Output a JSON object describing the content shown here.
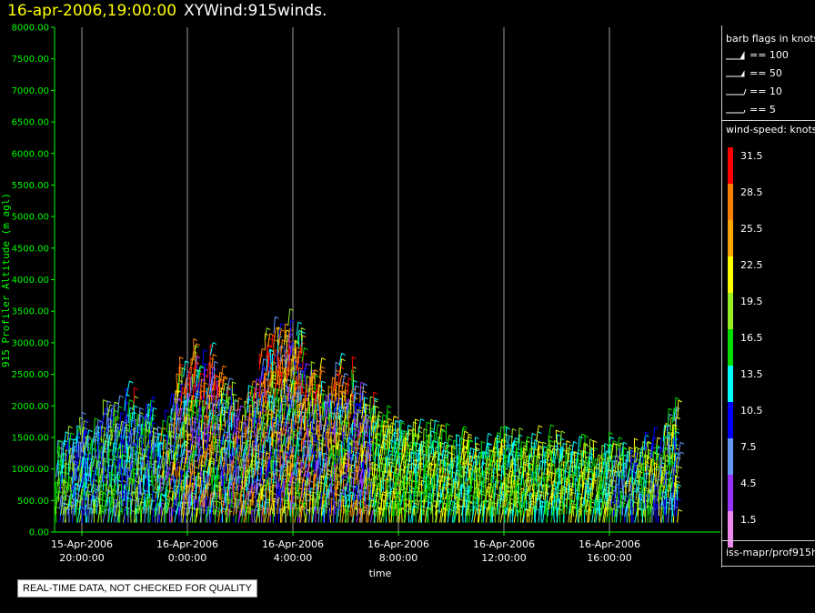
{
  "header": {
    "date": "16-apr-2006,19:00:00",
    "product": "XYWind:915winds."
  },
  "legend": {
    "barb_title": "barb flags in knots",
    "barbs": [
      "== 100",
      "== 50",
      "== 10",
      "== 5"
    ],
    "speed_title": "wind-speed: knots",
    "speed_bins": [
      {
        "label": "31.5",
        "color": "#ff0000"
      },
      {
        "label": "28.5",
        "color": "#ff7f00"
      },
      {
        "label": "25.5",
        "color": "#ffa500"
      },
      {
        "label": "22.5",
        "color": "#ffff00"
      },
      {
        "label": "19.5",
        "color": "#99ee22"
      },
      {
        "label": "16.5",
        "color": "#00dd00"
      },
      {
        "label": "13.5",
        "color": "#00ffff"
      },
      {
        "label": "10.5",
        "color": "#0000ff"
      },
      {
        "label": "7.5",
        "color": "#6699ff"
      },
      {
        "label": "4.5",
        "color": "#9933ff"
      },
      {
        "label": "1.5",
        "color": "#ee88ee"
      }
    ],
    "source": "iss-mapr/prof915h"
  },
  "notice": "REAL-TIME DATA, NOT CHECKED FOR QUALITY",
  "chart_data": {
    "type": "scatter",
    "xlabel": "time",
    "ylabel": "915 Profiler Altitude (m agl)",
    "ylim": [
      0,
      8000
    ],
    "yticks": [
      "0.00",
      "500.00",
      "1000.00",
      "1500.00",
      "2000.00",
      "2500.00",
      "3000.00",
      "3500.00",
      "4000.00",
      "4500.00",
      "5000.00",
      "5500.00",
      "6000.00",
      "6500.00",
      "7000.00",
      "7500.00",
      "8000.00"
    ],
    "xticks": [
      {
        "date": "15-Apr-2006",
        "time": "20:00:00"
      },
      {
        "date": "16-Apr-2006",
        "time": "0:00:00"
      },
      {
        "date": "16-Apr-2006",
        "time": "4:00:00"
      },
      {
        "date": "16-Apr-2006",
        "time": "8:00:00"
      },
      {
        "date": "16-Apr-2006",
        "time": "12:00:00"
      },
      {
        "date": "16-Apr-2006",
        "time": "16:00:00"
      }
    ],
    "grid": "vertical",
    "axis_color": "#00ff00",
    "series_envelope": {
      "hours_from_first_tick": [
        -1,
        0,
        1,
        2,
        3,
        4,
        5,
        6,
        7,
        8,
        9,
        10,
        11,
        12,
        13,
        14,
        15,
        16,
        17,
        18,
        19,
        20,
        21,
        22,
        23
      ],
      "top_altitude_m": [
        1300,
        1500,
        1700,
        2000,
        1500,
        2600,
        2500,
        1700,
        2800,
        2900,
        2300,
        2400,
        1900,
        1400,
        1500,
        1400,
        1300,
        1300,
        1300,
        1300,
        1250,
        1200,
        1200,
        1500,
        1900
      ]
    }
  }
}
